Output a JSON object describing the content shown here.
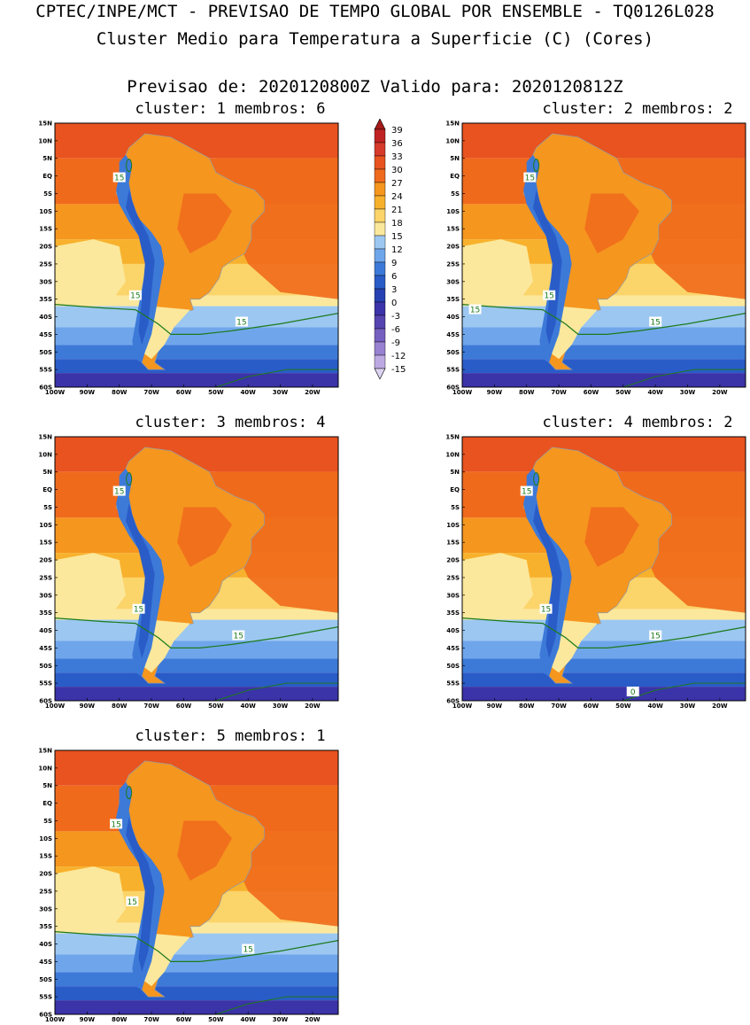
{
  "header": {
    "line1": "CPTEC/INPE/MCT - PREVISAO DE TEMPO GLOBAL POR ENSEMBLE - TQ0126L028",
    "line2": "Cluster Medio para Temperatura a Superficie (C) (Cores)",
    "line3": "Previsao de: 2020120800Z   Valido para: 2020120812Z"
  },
  "panels": [
    {
      "title": "cluster: 1  membros: 6",
      "contour_labels": [
        "15",
        "15",
        "15"
      ]
    },
    {
      "title": "cluster: 2  membros: 2",
      "contour_labels": [
        "15",
        "15",
        "15",
        "15"
      ]
    },
    {
      "title": "cluster: 3  membros: 4",
      "contour_labels": [
        "15",
        "15",
        "15"
      ]
    },
    {
      "title": "cluster: 4  membros: 2",
      "contour_labels": [
        "15",
        "15",
        "15",
        "0"
      ]
    },
    {
      "title": "cluster: 5  membros: 1",
      "contour_labels": [
        "15",
        "15",
        "15"
      ]
    }
  ],
  "lat_labels": [
    "15N",
    "10N",
    "5N",
    "EQ",
    "5S",
    "10S",
    "15S",
    "20S",
    "25S",
    "30S",
    "35S",
    "40S",
    "45S",
    "50S",
    "55S",
    "60S"
  ],
  "lon_labels": [
    "100W",
    "90W",
    "80W",
    "70W",
    "60W",
    "50W",
    "40W",
    "30W",
    "20W"
  ],
  "colorbar": {
    "labels": [
      "39",
      "36",
      "33",
      "30",
      "27",
      "24",
      "21",
      "18",
      "15",
      "12",
      "9",
      "6",
      "3",
      "0",
      "-3",
      "-6",
      "-9",
      "-12",
      "-15"
    ],
    "colors": [
      "#a51a1a",
      "#c02323",
      "#d63a2a",
      "#e8531f",
      "#f06a1c",
      "#f5961f",
      "#f8b12c",
      "#fbd46a",
      "#fbe89c",
      "#9cc7f1",
      "#6fa6eb",
      "#3d7ad8",
      "#2a5cc8",
      "#2741b2",
      "#3b33a8",
      "#5645b0",
      "#7560c0",
      "#9781d0",
      "#bda9e2",
      "#ddd4f2"
    ]
  },
  "colors": {
    "warm_dark": "#e8531f",
    "warm_mid": "#f06a1c",
    "warm_orange": "#f5961f",
    "warm_light": "#f8b12c",
    "yellow": "#fbd46a",
    "pale_yellow": "#fbe89c",
    "cool_light": "#9cc7f1",
    "cool_mid": "#6fa6eb",
    "cool_blue": "#3d7ad8",
    "deep_blue": "#2a5cc8",
    "purple": "#3b33a8",
    "contour": "#1c7a1c",
    "border": "#9a9a9a"
  }
}
